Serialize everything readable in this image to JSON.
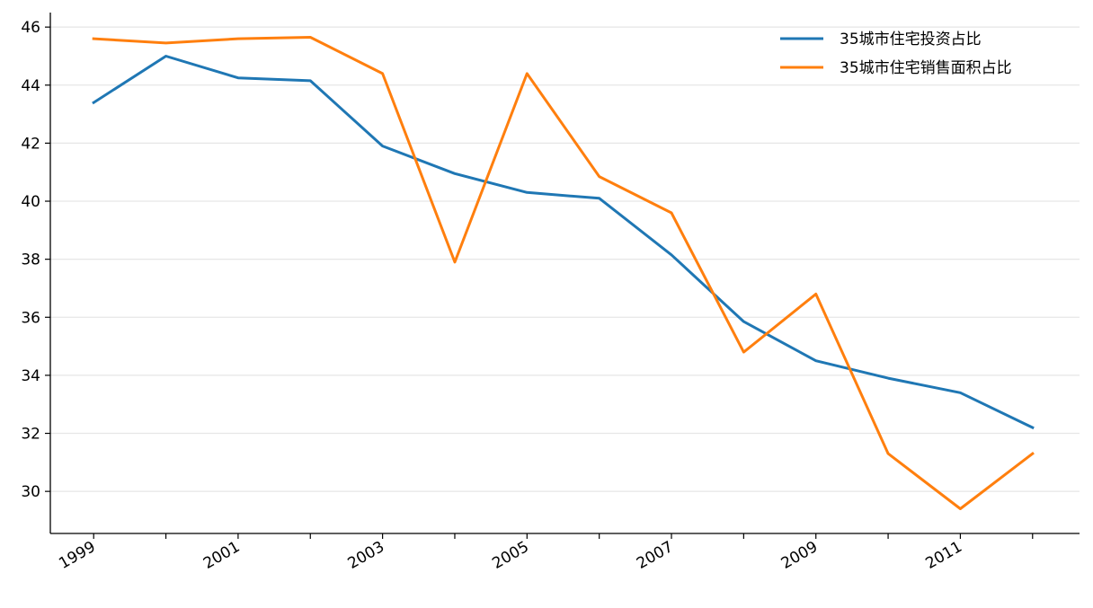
{
  "chart_data": {
    "type": "line",
    "title": "",
    "xlabel": "",
    "ylabel": "",
    "x": [
      1999,
      2000,
      2001,
      2002,
      2003,
      2004,
      2005,
      2006,
      2007,
      2008,
      2009,
      2010,
      2011,
      2012
    ],
    "xticks": [
      "1999",
      "2001",
      "2003",
      "2005",
      "2007",
      "2009",
      "2011"
    ],
    "yticks": [
      "30",
      "32",
      "34",
      "36",
      "38",
      "40",
      "42",
      "44",
      "46"
    ],
    "xlim": [
      1998.4,
      2012.65
    ],
    "ylim": [
      28.55,
      46.5
    ],
    "grid": "horizontal",
    "legend_position": "top-right",
    "series": [
      {
        "name": "35城市住宅投资占比",
        "color": "#1f77b4",
        "values": [
          43.4,
          45.0,
          44.25,
          44.15,
          41.9,
          40.95,
          40.3,
          40.1,
          38.15,
          35.85,
          34.5,
          33.9,
          33.4,
          32.2
        ]
      },
      {
        "name": "35城市住宅销售面积占比",
        "color": "#ff7f0e",
        "values": [
          45.6,
          45.45,
          45.6,
          45.65,
          44.4,
          37.9,
          44.4,
          40.85,
          39.6,
          34.8,
          36.8,
          31.3,
          29.4,
          31.3
        ]
      }
    ]
  }
}
